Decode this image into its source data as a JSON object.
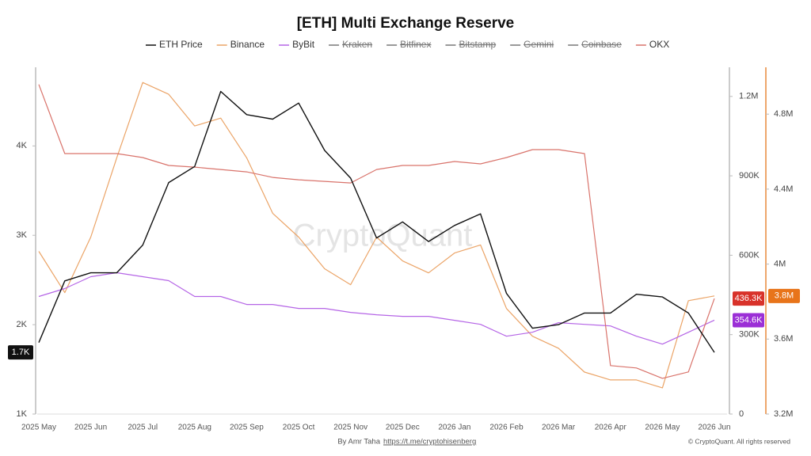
{
  "chart_data": {
    "type": "line",
    "title": "[ETH] Multi Exchange Reserve",
    "watermark": "CryptoQuant",
    "footer_author": "By Amr Taha",
    "footer_link": "https://t.me/cryptohisenberg",
    "copyright": "© CryptoQuant. All rights reserved",
    "categories": [
      "2025 May",
      null,
      "2025 Jun",
      null,
      "2025 Jul",
      null,
      "2025 Aug",
      null,
      "2025 Sep",
      null,
      "2025 Oct",
      null,
      "2025 Nov",
      null,
      "2025 Dec",
      null,
      "2026 Jan",
      null,
      "2026 Feb",
      null,
      "2026 Mar",
      null,
      "2026 Apr",
      null,
      "2026 May",
      null,
      "2026 Jun"
    ],
    "ylim": [
      1000,
      4880
    ],
    "yticks": [
      {
        "value": 1000,
        "label": "1K"
      },
      {
        "value": 2000,
        "label": "2K"
      },
      {
        "value": 3000,
        "label": "3K"
      },
      {
        "value": 4000,
        "label": "4K"
      }
    ],
    "y2lim": [
      0,
      1310000
    ],
    "y2ticks": [
      {
        "value": 0,
        "label": "0"
      },
      {
        "value": 300000,
        "label": "300K"
      },
      {
        "value": 600000,
        "label": "600K"
      },
      {
        "value": 900000,
        "label": "900K"
      },
      {
        "value": 1200000,
        "label": "1.2M"
      }
    ],
    "y3lim": [
      3200000,
      5050000
    ],
    "y3ticks": [
      {
        "value": 3200000,
        "label": "3.2M"
      },
      {
        "value": 3600000,
        "label": "3.6M"
      },
      {
        "value": 4000000,
        "label": "4M"
      },
      {
        "value": 4400000,
        "label": "4.4M"
      },
      {
        "value": 4800000,
        "label": "4.8M"
      }
    ],
    "y3color": "#e8893a",
    "series": [
      {
        "name": "ETH Price",
        "color": "#111111",
        "axis": "y",
        "last_label": "1.7K",
        "values": [
          1800,
          2490,
          2580,
          2580,
          2890,
          3590,
          3770,
          4610,
          4350,
          4300,
          4480,
          3950,
          3640,
          2970,
          3150,
          2930,
          3110,
          3240,
          2350,
          1960,
          2000,
          2130,
          2130,
          2340,
          2310,
          2130,
          1690
        ]
      },
      {
        "name": "Binance",
        "color": "#eba467",
        "axis": "y3",
        "last_label": "3.8M",
        "label_color": "#e8741a",
        "values": [
          4068000,
          3848000,
          4144000,
          4567000,
          4969000,
          4906000,
          4737000,
          4779000,
          4567000,
          4271000,
          4144000,
          3975000,
          3890000,
          4144000,
          4017000,
          3953000,
          4059000,
          4102000,
          3763000,
          3615000,
          3551000,
          3424000,
          3382000,
          3382000,
          3340000,
          3805000,
          3830000
        ]
      },
      {
        "name": "ByBit",
        "color": "#b565e6",
        "axis": "y2",
        "last_label": "354.6K",
        "label_color": "#9b2fd6",
        "values": [
          444000,
          474000,
          519000,
          534000,
          519000,
          504000,
          444000,
          444000,
          414000,
          414000,
          399000,
          399000,
          384000,
          375000,
          369000,
          369000,
          354000,
          339000,
          294000,
          309000,
          345000,
          339000,
          333000,
          294000,
          264000,
          309000,
          354600
        ]
      },
      {
        "name": "Kraken",
        "hidden": true
      },
      {
        "name": "Bitfinex",
        "hidden": true
      },
      {
        "name": "Bitstamp",
        "hidden": true
      },
      {
        "name": "Gemini",
        "hidden": true
      },
      {
        "name": "Coinbase",
        "hidden": true
      },
      {
        "name": "OKX",
        "color": "#d9736b",
        "axis": "y2",
        "last_label": "436.3K",
        "label_color": "#d8322a",
        "values": [
          1245000,
          984000,
          984000,
          984000,
          969000,
          939000,
          933000,
          924000,
          915000,
          894000,
          885000,
          879000,
          873000,
          924000,
          939000,
          939000,
          954000,
          945000,
          969000,
          999000,
          999000,
          984000,
          183000,
          174000,
          135000,
          159000,
          436300
        ]
      }
    ]
  }
}
